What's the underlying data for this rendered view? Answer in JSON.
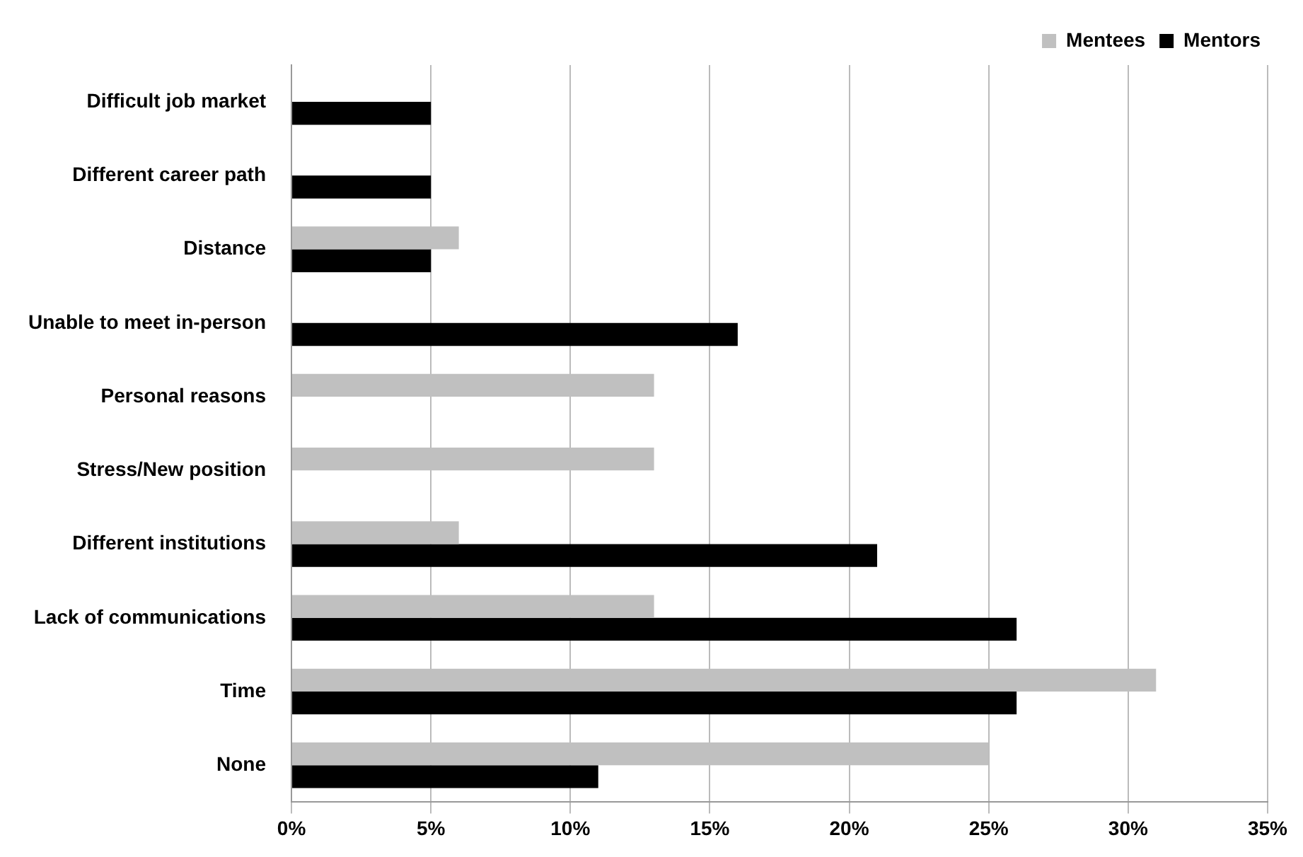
{
  "chart_data": {
    "type": "bar",
    "orientation": "horizontal",
    "categories": [
      "Difficult job market",
      "Different career path",
      "Distance",
      "Unable to meet in-person",
      "Personal reasons",
      "Stress/New position",
      "Different institutions",
      "Lack of communications",
      "Time",
      "None"
    ],
    "series": [
      {
        "name": "Mentees",
        "color": "#c0c0c0",
        "values": [
          null,
          null,
          6,
          null,
          13,
          13,
          6,
          13,
          31,
          25
        ]
      },
      {
        "name": "Mentors",
        "color": "#000000",
        "values": [
          5,
          5,
          5,
          16,
          null,
          null,
          21,
          26,
          26,
          11
        ]
      }
    ],
    "xlim": [
      0,
      35
    ],
    "xticks": [
      {
        "value": 0,
        "label": "0%"
      },
      {
        "value": 5,
        "label": "5%"
      },
      {
        "value": 10,
        "label": "10%"
      },
      {
        "value": 15,
        "label": "15%"
      },
      {
        "value": 20,
        "label": "20%"
      },
      {
        "value": 25,
        "label": "25%"
      },
      {
        "value": 30,
        "label": "30%"
      },
      {
        "value": 35,
        "label": "35%"
      }
    ],
    "grid": "x",
    "legend": "top right"
  }
}
